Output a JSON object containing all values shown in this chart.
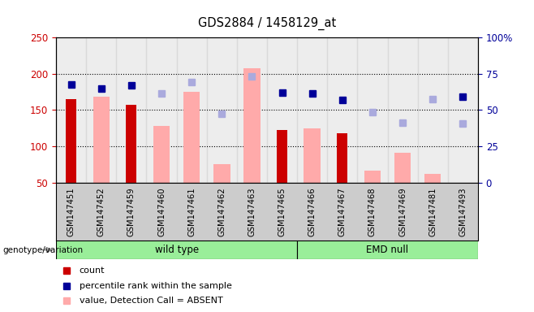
{
  "title": "GDS2884 / 1458129_at",
  "samples": [
    "GSM147451",
    "GSM147452",
    "GSM147459",
    "GSM147460",
    "GSM147461",
    "GSM147462",
    "GSM147463",
    "GSM147465",
    "GSM147466",
    "GSM147467",
    "GSM147468",
    "GSM147469",
    "GSM147481",
    "GSM147493"
  ],
  "wild_type_count": 8,
  "emd_null_count": 6,
  "count_red": [
    165,
    null,
    157,
    null,
    null,
    null,
    null,
    122,
    null,
    118,
    null,
    null,
    null,
    null
  ],
  "value_absent_pink": [
    null,
    168,
    null,
    128,
    175,
    75,
    207,
    null,
    125,
    null,
    66,
    91,
    62,
    null
  ],
  "percentile_rank_blue": [
    185,
    180,
    184,
    null,
    null,
    null,
    null,
    174,
    173,
    164,
    null,
    null,
    null,
    168
  ],
  "rank_absent_lightblue": [
    null,
    null,
    null,
    173,
    188,
    145,
    196,
    null,
    null,
    null,
    147,
    133,
    165,
    131
  ],
  "ylim_left": [
    50,
    250
  ],
  "ylim_right": [
    0,
    100
  ],
  "yticks_left": [
    50,
    100,
    150,
    200,
    250
  ],
  "yticks_right": [
    0,
    25,
    50,
    75,
    100
  ],
  "grid_values": [
    100,
    150,
    200
  ],
  "color_red": "#cc0000",
  "color_pink": "#ffaaaa",
  "color_blue": "#000099",
  "color_lightblue": "#aaaadd",
  "color_green_light": "#99ee99",
  "color_gray_bg": "#cccccc",
  "marker_size": 6
}
